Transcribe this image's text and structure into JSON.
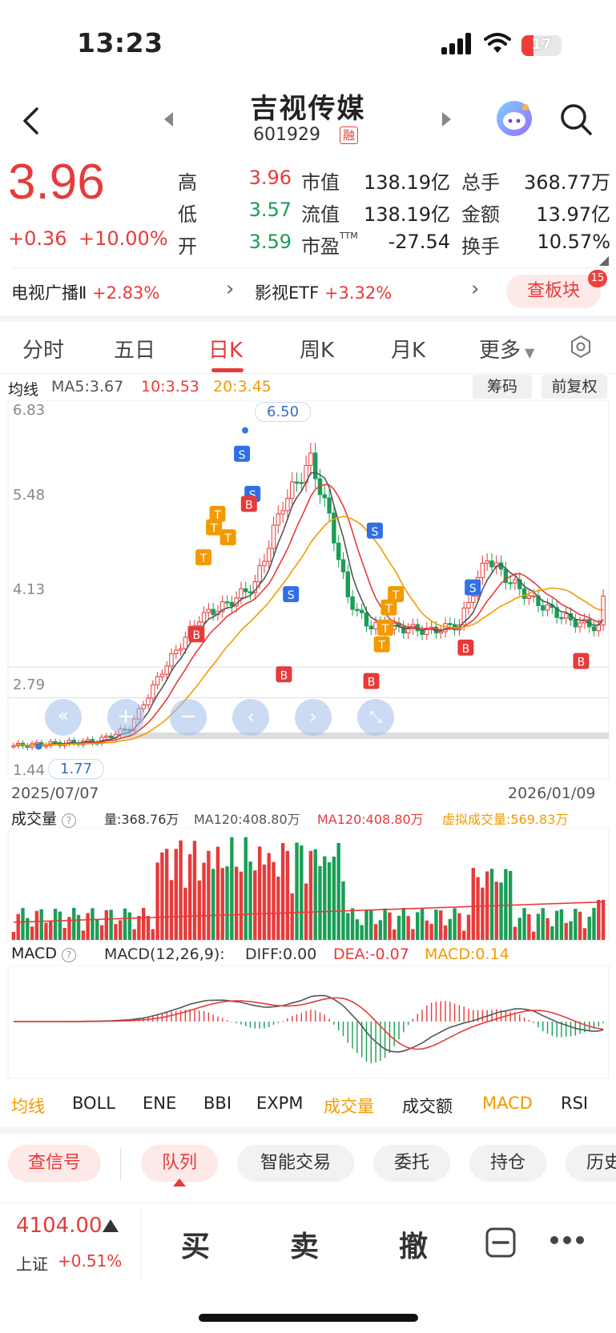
{
  "status_bar": {
    "time": "13:23",
    "battery": "17"
  },
  "header": {
    "name": "吉视传媒",
    "code": "601929",
    "badge": "融"
  },
  "quote": {
    "price": "3.96",
    "change": "+0.36",
    "change_pct": "+10.00%",
    "fields": [
      {
        "label": "高",
        "value": "3.96",
        "color": "#e83a3a"
      },
      {
        "label": "低",
        "value": "3.57",
        "color": "#1a9e56"
      },
      {
        "label": "开",
        "value": "3.59",
        "color": "#1a9e56"
      },
      {
        "label": "市值",
        "value": "138.19亿"
      },
      {
        "label": "流值",
        "value": "138.19亿"
      },
      {
        "label": "市盈",
        "sup": "TTM",
        "value": "-27.54"
      },
      {
        "label": "总手",
        "value": "368.77万"
      },
      {
        "label": "金额",
        "value": "13.97亿"
      },
      {
        "label": "换手",
        "value": "10.57%"
      }
    ]
  },
  "sectors": [
    {
      "name": "电视广播Ⅱ",
      "change": "+2.83%"
    },
    {
      "name": "影视ETF",
      "change": "+3.32%"
    }
  ],
  "sector_button": {
    "label": "查板块",
    "count": "15"
  },
  "period_tabs": [
    "分时",
    "五日",
    "日K",
    "周K",
    "月K",
    "更多"
  ],
  "ma_bar": {
    "title": "均线",
    "ma5": "MA5:3.67",
    "ma10": "10:3.53",
    "ma20": "20:3.45",
    "btn1": "筹码",
    "btn2": "前复权"
  },
  "price_axis": [
    "6.83",
    "5.48",
    "4.13",
    "2.79",
    "1.44"
  ],
  "price_high_label": "6.50",
  "price_low_label": "1.77",
  "date_start": "2025/07/07",
  "date_end": "2026/01/09",
  "volume_bar": {
    "title": "成交量",
    "vol": "量:368.76万",
    "ma1": "MA120:408.80万",
    "ma2": "MA120:408.80万",
    "virtual": "虚拟成交量:569.83万"
  },
  "macd_bar": {
    "title": "MACD",
    "params": "MACD(12,26,9):",
    "diff": "DIFF:0.00",
    "dea": "DEA:-0.07",
    "macd": "MACD:0.14"
  },
  "indicators": [
    {
      "label": "均线",
      "color": "#f39a00"
    },
    {
      "label": "BOLL",
      "color": "#222"
    },
    {
      "label": "ENE",
      "color": "#222"
    },
    {
      "label": "BBI",
      "color": "#222"
    },
    {
      "label": "EXPM",
      "color": "#222"
    },
    {
      "label": "成交量",
      "color": "#f39a00"
    },
    {
      "label": "成交额",
      "color": "#222"
    },
    {
      "label": "MACD",
      "color": "#f39a00"
    },
    {
      "label": "RSI",
      "color": "#222"
    }
  ],
  "bottom_tabs": [
    "查信号",
    "队列",
    "智能交易",
    "委托",
    "持仓",
    "历史"
  ],
  "index": {
    "value": "4104.00",
    "name": "上证",
    "change": "+0.51%"
  },
  "trade": {
    "buy": "买",
    "sell": "卖",
    "cancel": "撤"
  },
  "colors": {
    "up": "#e83a3a",
    "down": "#1a9e56",
    "accent": "#e83a3a",
    "ma20": "#f39a00"
  }
}
